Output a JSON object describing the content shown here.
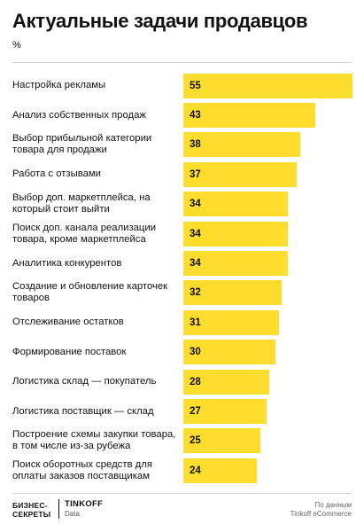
{
  "header": {
    "title": "Актуальные задачи продавцов",
    "unit": "%"
  },
  "footer": {
    "logo_bs_line1": "БИЗНЕС-",
    "logo_bs_line2": "СЕКРЕТЫ",
    "logo_tinkoff": "TINKOFF",
    "logo_tinkoff_sub": "Data",
    "source_line1": "По данным",
    "source_line2": "Tinkoff eCommerce"
  },
  "colors": {
    "bar": "#ffdd2d",
    "text": "#111111",
    "background": "#ffffff"
  },
  "chart_data": {
    "type": "bar",
    "orientation": "horizontal",
    "title": "Актуальные задачи продавцов",
    "ylabel": "%",
    "xlim": [
      0,
      55
    ],
    "grid": false,
    "categories": [
      "Настройка рекламы",
      "Анализ собственных продаж",
      "Выбор прибыльной категории товара для продажи",
      "Работа с отзывами",
      "Выбор доп. маркетплейса, на который стоит выйти",
      "Поиск доп. канала реализации товара, кроме маркетплейса",
      "Аналитика конкурентов",
      "Создание и обновление карточек товаров",
      "Отслеживание остатков",
      "Формирование поставок",
      "Логистика склад — покупатель",
      "Логистика поставщик — склад",
      "Построение схемы закупки товара, в том числе из-за рубежа",
      "Поиск оборотных средств для оплаты заказов поставщикам"
    ],
    "values": [
      55,
      43,
      38,
      37,
      34,
      34,
      34,
      32,
      31,
      30,
      28,
      27,
      25,
      24
    ]
  }
}
